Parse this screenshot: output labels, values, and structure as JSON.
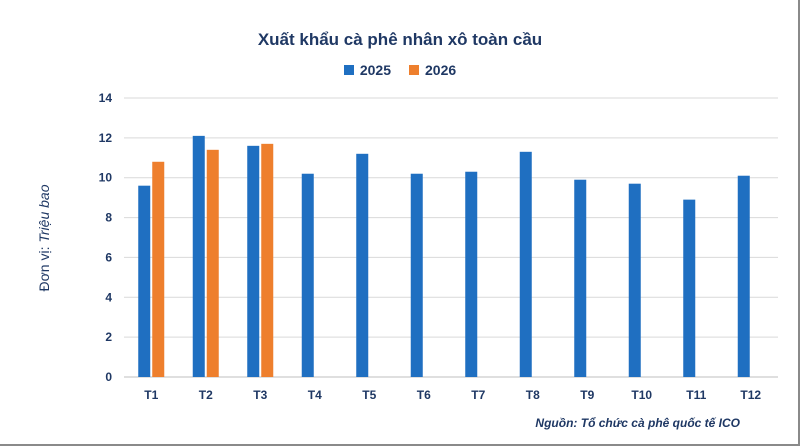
{
  "chart_data": {
    "type": "bar",
    "title": "Xuất khẩu cà phê nhân xô toàn cầu",
    "ylabel_prefix": "Đơn vị:",
    "ylabel_unit": "Triệu bao",
    "source": "Nguồn: Tổ chức cà phê quốc tế ICO",
    "categories": [
      "T1",
      "T2",
      "T3",
      "T4",
      "T5",
      "T6",
      "T7",
      "T8",
      "T9",
      "T10",
      "T11",
      "T12"
    ],
    "series": [
      {
        "name": "2025",
        "color": "#1f6fc1",
        "values": [
          9.6,
          12.1,
          11.6,
          10.2,
          11.2,
          10.2,
          10.3,
          11.3,
          9.9,
          9.7,
          8.9,
          10.1
        ]
      },
      {
        "name": "2026",
        "color": "#ee7f2d",
        "values": [
          10.8,
          11.4,
          11.7,
          null,
          null,
          null,
          null,
          null,
          null,
          null,
          null,
          null
        ]
      }
    ],
    "ylim": [
      0,
      14
    ],
    "yticks": [
      0,
      2,
      4,
      6,
      8,
      10,
      12,
      14
    ],
    "grid": true,
    "legend_position": "top"
  }
}
